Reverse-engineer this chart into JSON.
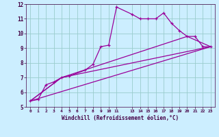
{
  "xlabel": "Windchill (Refroidissement éolien,°C)",
  "xlim": [
    -0.5,
    23.5
  ],
  "ylim": [
    5,
    12
  ],
  "bg_color": "#cceeff",
  "grid_color": "#99cccc",
  "line_color": "#990099",
  "line1_x": [
    0,
    1,
    2,
    3,
    4,
    5,
    7,
    8,
    9,
    10,
    11,
    13,
    14,
    15,
    16,
    17,
    18,
    19,
    20,
    21,
    22,
    23
  ],
  "line1_y": [
    5.4,
    5.5,
    6.5,
    6.7,
    7.0,
    7.1,
    7.5,
    7.9,
    9.1,
    9.2,
    11.8,
    11.3,
    11.0,
    11.0,
    11.0,
    11.4,
    10.7,
    10.2,
    9.8,
    9.8,
    9.1,
    9.1
  ],
  "line2_x": [
    0,
    23
  ],
  "line2_y": [
    5.4,
    9.1
  ],
  "line3_x": [
    0,
    4,
    23
  ],
  "line3_y": [
    5.4,
    7.0,
    9.1
  ],
  "line4_x": [
    0,
    4,
    20,
    23
  ],
  "line4_y": [
    5.4,
    7.0,
    9.8,
    9.1
  ],
  "xtick_positions": [
    0,
    1,
    2,
    3,
    4,
    5,
    6,
    7,
    8,
    9,
    10,
    11,
    13,
    14,
    15,
    16,
    17,
    18,
    19,
    20,
    21,
    22,
    23
  ],
  "xtick_labels": [
    "0",
    "1",
    "2",
    "3",
    "4",
    "5",
    "6",
    "7",
    "8",
    "9",
    "10",
    "11",
    "13",
    "14",
    "15",
    "16",
    "17",
    "18",
    "19",
    "20",
    "21",
    "22",
    "23"
  ],
  "ytick_positions": [
    5,
    6,
    7,
    8,
    9,
    10,
    11,
    12
  ],
  "ytick_labels": [
    "5",
    "6",
    "7",
    "8",
    "9",
    "10",
    "11",
    "12"
  ]
}
